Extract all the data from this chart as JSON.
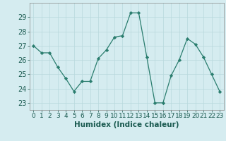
{
  "x": [
    0,
    1,
    2,
    3,
    4,
    5,
    6,
    7,
    8,
    9,
    10,
    11,
    12,
    13,
    14,
    15,
    16,
    17,
    18,
    19,
    20,
    21,
    22,
    23
  ],
  "y": [
    27.0,
    26.5,
    26.5,
    25.5,
    24.7,
    23.8,
    24.5,
    24.5,
    26.1,
    26.7,
    27.6,
    27.7,
    29.3,
    29.3,
    26.2,
    23.0,
    23.0,
    24.9,
    26.0,
    27.5,
    27.1,
    26.2,
    25.0,
    23.8
  ],
  "line_color": "#2a7d6e",
  "marker": "D",
  "marker_size": 2.2,
  "bg_color": "#d5ecf0",
  "grid_color": "#b8d8dd",
  "xlabel": "Humidex (Indice chaleur)",
  "ylim": [
    22.5,
    30.0
  ],
  "xlim": [
    -0.5,
    23.5
  ],
  "yticks": [
    23,
    24,
    25,
    26,
    27,
    28,
    29
  ],
  "xticks": [
    0,
    1,
    2,
    3,
    4,
    5,
    6,
    7,
    8,
    9,
    10,
    11,
    12,
    13,
    14,
    15,
    16,
    17,
    18,
    19,
    20,
    21,
    22,
    23
  ],
  "xlabel_fontsize": 7.5,
  "tick_fontsize": 6.5,
  "ytick_fontsize": 7.0,
  "linewidth": 0.9
}
